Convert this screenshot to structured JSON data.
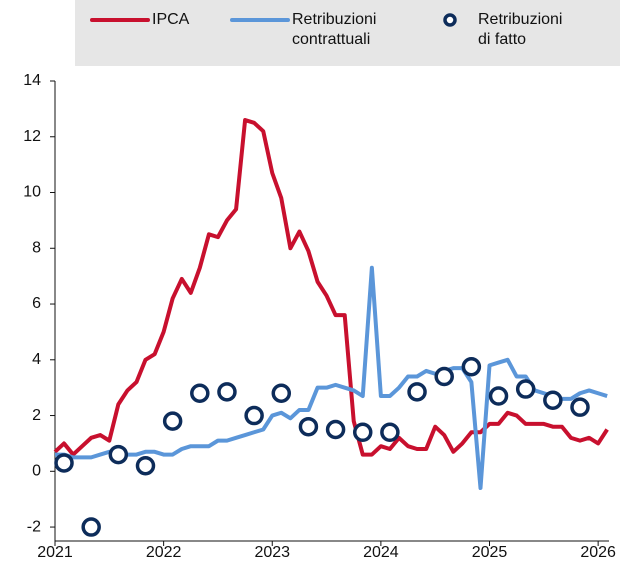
{
  "chart_data": {
    "type": "line",
    "x": [
      2021,
      2021.083,
      2021.167,
      2021.25,
      2021.333,
      2021.417,
      2021.5,
      2021.583,
      2021.667,
      2021.75,
      2021.833,
      2021.917,
      2022,
      2022.083,
      2022.167,
      2022.25,
      2022.333,
      2022.417,
      2022.5,
      2022.583,
      2022.667,
      2022.75,
      2022.833,
      2022.917,
      2023,
      2023.083,
      2023.167,
      2023.25,
      2023.333,
      2023.417,
      2023.5,
      2023.583,
      2023.667,
      2023.75,
      2023.833,
      2023.917,
      2024,
      2024.083,
      2024.167,
      2024.25,
      2024.333,
      2024.417,
      2024.5,
      2024.583,
      2024.667,
      2024.75,
      2024.833,
      2024.917,
      2025,
      2025.083,
      2025.167,
      2025.25,
      2025.333,
      2025.417,
      2025.5,
      2025.583,
      2025.667,
      2025.75,
      2025.833,
      2025.917,
      2026,
      2026.083
    ],
    "series": [
      {
        "name": "IPCA",
        "color": "#c8102e",
        "values": [
          0.7,
          1.0,
          0.6,
          0.9,
          1.2,
          1.3,
          1.1,
          2.4,
          2.9,
          3.2,
          4.0,
          4.2,
          5.0,
          6.2,
          6.9,
          6.4,
          7.3,
          8.5,
          8.4,
          9.0,
          9.4,
          12.6,
          12.5,
          12.2,
          10.7,
          9.8,
          8.0,
          8.6,
          7.9,
          6.8,
          6.3,
          5.6,
          5.6,
          1.8,
          0.6,
          0.6,
          0.9,
          0.8,
          1.2,
          0.9,
          0.8,
          0.8,
          1.6,
          1.3,
          0.7,
          1.0,
          1.4,
          1.4,
          1.7,
          1.7,
          2.1,
          2.0,
          1.7,
          1.7,
          1.7,
          1.6,
          1.6,
          1.2,
          1.1,
          1.2,
          1.0,
          1.5
        ]
      },
      {
        "name": "Retribuzioni contrattuali",
        "color": "#5b96d9",
        "values": [
          0.6,
          0.6,
          0.5,
          0.5,
          0.5,
          0.6,
          0.7,
          0.7,
          0.6,
          0.6,
          0.7,
          0.7,
          0.6,
          0.6,
          0.8,
          0.9,
          0.9,
          0.9,
          1.1,
          1.1,
          1.2,
          1.3,
          1.4,
          1.5,
          2.0,
          2.1,
          1.9,
          2.2,
          2.2,
          3.0,
          3.0,
          3.1,
          3.0,
          2.9,
          2.7,
          7.3,
          2.7,
          2.7,
          3.0,
          3.4,
          3.4,
          3.6,
          3.5,
          3.6,
          3.7,
          3.7,
          3.2,
          -0.6,
          3.8,
          3.9,
          4.0,
          3.4,
          3.4,
          2.9,
          2.8,
          2.7,
          2.6,
          2.6,
          2.8,
          2.9,
          2.8,
          2.7
        ]
      },
      {
        "name": "Retribuzioni di fatto",
        "color": "#0d2c5a",
        "marker": "circle",
        "x": [
          2021.083,
          2021.333,
          2021.583,
          2021.833,
          2022.083,
          2022.333,
          2022.583,
          2022.833,
          2023.083,
          2023.333,
          2023.583,
          2023.833,
          2024.083,
          2024.333,
          2024.583,
          2024.833,
          2025.083,
          2025.333,
          2025.583,
          2025.833
        ],
        "values": [
          0.3,
          -2.0,
          0.6,
          0.2,
          1.8,
          2.8,
          2.85,
          2.0,
          2.8,
          1.6,
          1.5,
          1.4,
          1.4,
          2.85,
          3.4,
          3.75,
          2.7,
          2.95,
          2.55,
          2.3
        ]
      }
    ],
    "xlim": [
      2021,
      2026.1
    ],
    "xticks": [
      2021,
      2022,
      2023,
      2024,
      2025,
      2026
    ],
    "ylim": [
      -2.5,
      14
    ],
    "yticks": [
      -2,
      0,
      2,
      4,
      6,
      8,
      10,
      12,
      14
    ],
    "grid": false
  }
}
